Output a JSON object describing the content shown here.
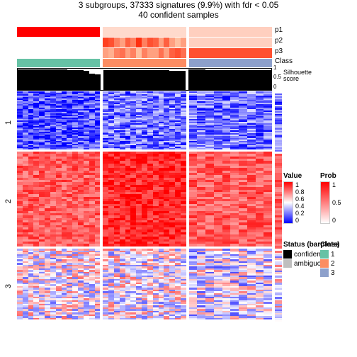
{
  "title_line1": "3 subgroups, 37333 signatures (9.9%) with fdr < 0.05",
  "title_line2": "40 confident samples",
  "panels": {
    "count": 3,
    "samples_per_panel": [
      15,
      15,
      10
    ]
  },
  "anno_tracks": {
    "p1": {
      "label": "p1",
      "colors_by_panel": [
        [
          "#ff0000",
          "#ff0000",
          "#ff0000",
          "#ff0000",
          "#ff0000",
          "#ff0000",
          "#ff0000",
          "#ff0000",
          "#ff0000",
          "#ff0000",
          "#ff0000",
          "#ff0000",
          "#ff0000",
          "#ff0000",
          "#ff0000"
        ],
        [
          "#ffdacc",
          "#ffdacc",
          "#ffdacc",
          "#ffdacc",
          "#ffdacc",
          "#ffdacc",
          "#ffdacc",
          "#ffdacc",
          "#ffdacc",
          "#ffdacc",
          "#ffdacc",
          "#ffdacc",
          "#ffdacc",
          "#ffdacc",
          "#ffdacc"
        ],
        [
          "#ffcfbf",
          "#ffcfbf",
          "#ffcfbf",
          "#ffcfbf",
          "#ffcfbf",
          "#ffcfbf",
          "#ffcfbf",
          "#ffcfbf",
          "#ffcfbf",
          "#ffcfbf"
        ]
      ]
    },
    "p2": {
      "label": "p2",
      "colors_by_panel": [
        [
          "#ffffff",
          "#ffffff",
          "#ffffff",
          "#ffffff",
          "#ffffff",
          "#ffffff",
          "#ffffff",
          "#ffffff",
          "#ffffff",
          "#ffffff",
          "#ffffff",
          "#ffffff",
          "#ffffff",
          "#ffffff",
          "#ffffff"
        ],
        [
          "#ff4020",
          "#ff5030",
          "#ff8060",
          "#ffa080",
          "#ff6040",
          "#ff8060",
          "#ff3010",
          "#ff8060",
          "#ff5030",
          "#ff6040",
          "#ffa080",
          "#ff6040",
          "#ffa080",
          "#ffc0a0",
          "#ffa080"
        ],
        [
          "#ffd0c0",
          "#ffd0c0",
          "#ffd0c0",
          "#ffd0c0",
          "#ffd0c0",
          "#ffd0c0",
          "#ffd0c0",
          "#ffd0c0",
          "#ffd0c0",
          "#ffd0c0"
        ]
      ]
    },
    "p3": {
      "label": "p3",
      "colors_by_panel": [
        [
          "#ffffff",
          "#ffffff",
          "#ffffff",
          "#ffffff",
          "#ffffff",
          "#ffffff",
          "#ffffff",
          "#ffffff",
          "#ffffff",
          "#ffffff",
          "#ffffff",
          "#ffffff",
          "#ffffff",
          "#ffffff",
          "#ffffff"
        ],
        [
          "#ffa080",
          "#ffb090",
          "#ff8060",
          "#ff7050",
          "#ffa080",
          "#ff8060",
          "#ffc0a0",
          "#ff8060",
          "#ffa080",
          "#ffa080",
          "#ff7050",
          "#ffa080",
          "#ff6040",
          "#ff5030",
          "#ff7050"
        ],
        [
          "#ff5030",
          "#ff5030",
          "#ff5030",
          "#ff5030",
          "#ff5030",
          "#ff5030",
          "#ff5030",
          "#ff5030",
          "#ff5030",
          "#ff5030"
        ]
      ]
    },
    "class": {
      "label": "Class",
      "panel_colors": [
        "#66c2a5",
        "#fc8d62",
        "#8da0cb"
      ]
    }
  },
  "silhouette": {
    "label": "Silhouette\nscore",
    "axis": [
      "0",
      "0.5",
      "1"
    ],
    "heights_by_panel": [
      [
        0.98,
        0.98,
        0.98,
        0.98,
        0.98,
        0.98,
        0.98,
        0.97,
        0.96,
        0.95,
        0.95,
        0.94,
        0.9,
        0.78,
        0.75
      ],
      [
        0.95,
        0.95,
        0.94,
        0.94,
        0.94,
        0.94,
        0.93,
        0.93,
        0.93,
        0.92,
        0.92,
        0.92,
        0.91,
        0.9,
        0.9
      ],
      [
        0.96,
        0.96,
        0.95,
        0.95,
        0.94,
        0.94,
        0.93,
        0.93,
        0.93,
        0.92
      ]
    ]
  },
  "heatmap": {
    "cluster_labels": [
      "1",
      "2",
      "3"
    ],
    "cluster_heights": [
      82,
      134,
      100
    ],
    "rows_per_cluster": 40,
    "value_scale": {
      "low": "#0000ff",
      "mid": "#ffffff",
      "high": "#ff0000"
    },
    "cluster_mean_profiles": [
      {
        "base": 0.22,
        "own_panel": 0,
        "own_boost": -0.08,
        "noise": 0.22
      },
      {
        "base": 0.82,
        "own_panel": 1,
        "own_boost": 0.1,
        "noise": 0.12
      },
      {
        "base": 0.5,
        "own_panel": 2,
        "own_boost": -0.05,
        "noise": 0.3
      }
    ]
  },
  "legends": {
    "value": {
      "title": "Value",
      "ticks": [
        "1",
        "0.8",
        "0.6",
        "0.4",
        "0.2",
        "0"
      ],
      "gradient": [
        "#ff0000",
        "#ffffff",
        "#0000ff"
      ]
    },
    "prob": {
      "title": "Prob",
      "ticks": [
        "1",
        "0.5",
        "0"
      ],
      "gradient": [
        "#ff0000",
        "#ffffff"
      ]
    },
    "status": {
      "title": "Status (barplots)",
      "items": [
        {
          "label": "confident",
          "color": "#000000"
        },
        {
          "label": "ambiguous",
          "color": "#bfbfbf"
        }
      ]
    },
    "class": {
      "title": "Class",
      "items": [
        {
          "label": "1",
          "color": "#66c2a5"
        },
        {
          "label": "2",
          "color": "#fc8d62"
        },
        {
          "label": "3",
          "color": "#8da0cb"
        }
      ]
    }
  },
  "colors": {
    "bg": "#ffffff"
  }
}
